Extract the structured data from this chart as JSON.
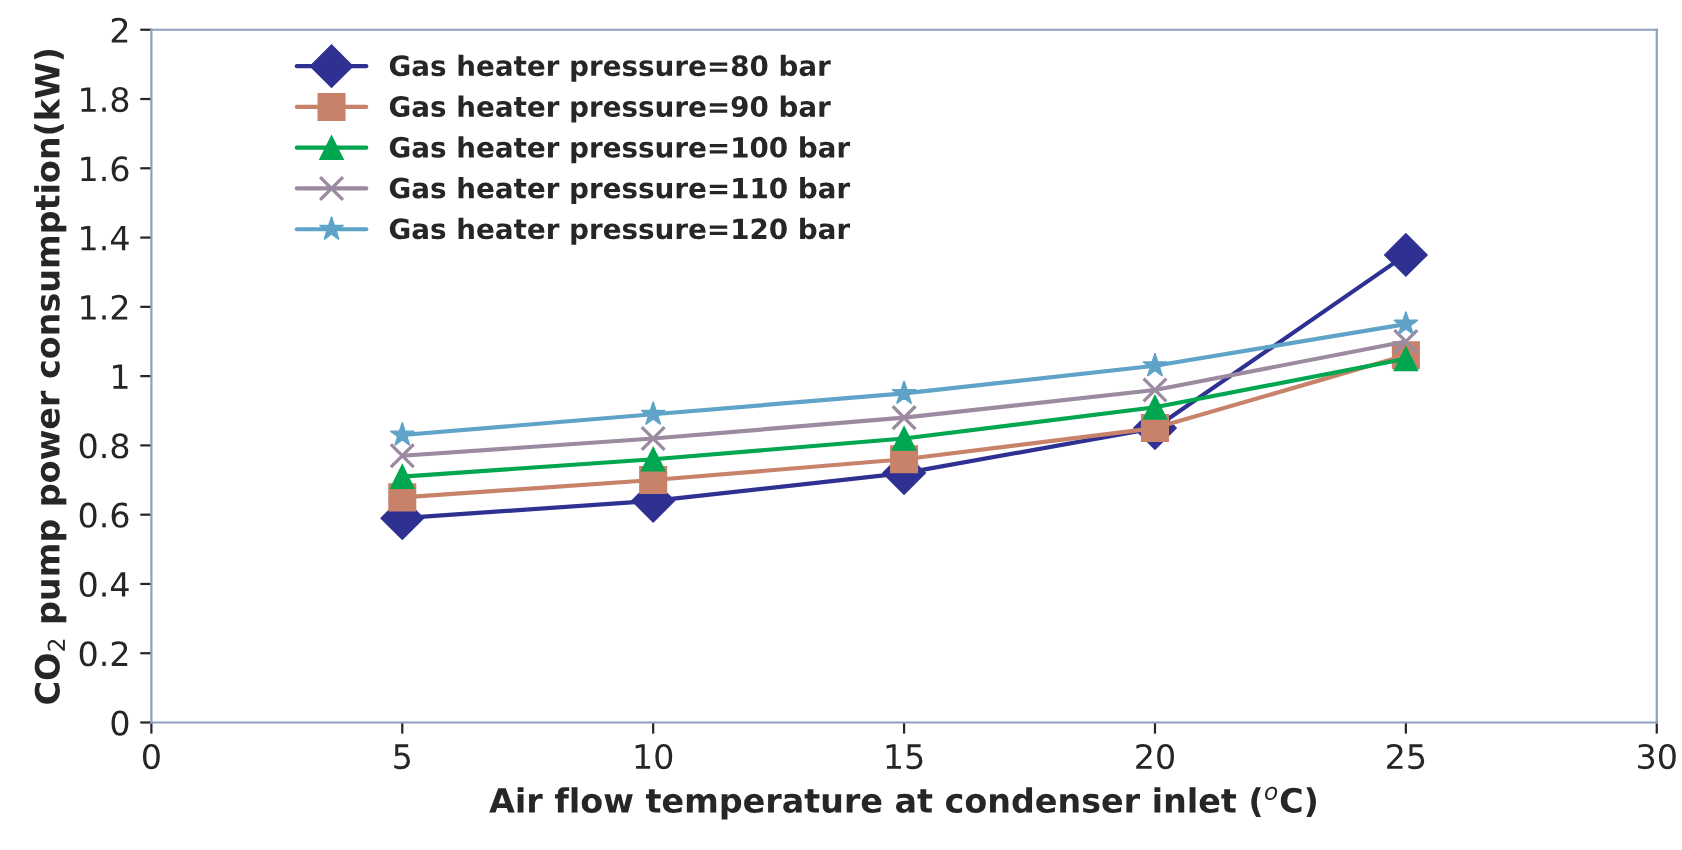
{
  "chart_data": {
    "type": "line",
    "xlabel": "Air flow temperature at condenser inlet ($^{o}$C)",
    "ylabel": "CO$_{2}$ pump power consumption(kW)",
    "x": [
      5,
      10,
      15,
      20,
      25
    ],
    "series": [
      {
        "name": "Gas heater pressure=80 bar",
        "color": "#2e3192",
        "marker": "diamond",
        "values": [
          0.59,
          0.64,
          0.72,
          0.85,
          1.35
        ]
      },
      {
        "name": "Gas heater pressure=90 bar",
        "color": "#c8826a",
        "marker": "square",
        "values": [
          0.65,
          0.7,
          0.76,
          0.85,
          1.06
        ]
      },
      {
        "name": "Gas heater pressure=100 bar",
        "color": "#00a650",
        "marker": "triangle",
        "values": [
          0.71,
          0.76,
          0.82,
          0.91,
          1.05
        ]
      },
      {
        "name": "Gas heater pressure=110 bar",
        "color": "#9b8aa0",
        "marker": "cross",
        "values": [
          0.77,
          0.82,
          0.88,
          0.96,
          1.1
        ]
      },
      {
        "name": "Gas heater pressure=120 bar",
        "color": "#5fa3c8",
        "marker": "star",
        "values": [
          0.83,
          0.89,
          0.95,
          1.03,
          1.15
        ]
      }
    ],
    "xlim": [
      0,
      30
    ],
    "xticks": [
      0,
      5,
      10,
      15,
      20,
      25,
      30
    ],
    "ylim": [
      0,
      2
    ],
    "yticks": [
      0,
      0.2,
      0.4,
      0.6,
      0.8,
      1,
      1.2,
      1.4,
      1.6,
      1.8,
      2
    ],
    "grid": false,
    "legend": "top left",
    "line_style": "solid"
  }
}
